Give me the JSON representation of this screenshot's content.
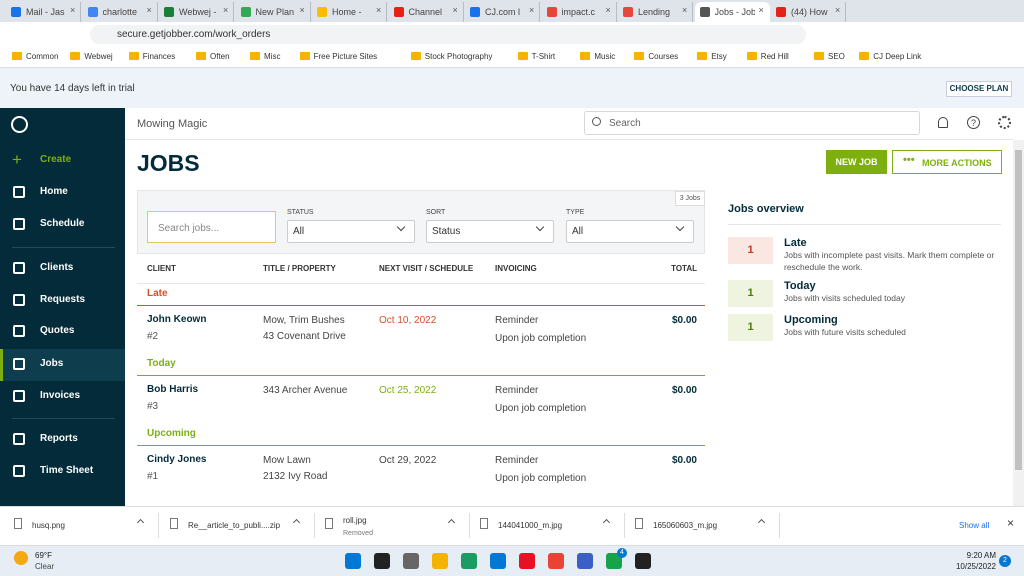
{
  "browser": {
    "tabs": [
      "Mail - Jas",
      "charlotte",
      "Webwej - L",
      "New Plan",
      "Home -",
      "Channel",
      "CJ.com l",
      "impact.c",
      "Lending",
      "Jobs - Job",
      "(44) How"
    ],
    "active_tab": 9,
    "url": "secure.getjobber.com/work_orders",
    "bookmarks": [
      "Common",
      "Webwej",
      "Finances",
      "Often",
      "Misc",
      "Free Picture Sites",
      "Stock Photography",
      "T-Shirt",
      "Music",
      "Courses",
      "Etsy",
      "Red Hill",
      "SEO",
      "CJ Deep Link"
    ]
  },
  "trial_banner": {
    "text": "You have 14 days left in trial",
    "button": "CHOOSE PLAN"
  },
  "sidebar": {
    "items": [
      "Create",
      "Home",
      "Schedule",
      "Clients",
      "Requests",
      "Quotes",
      "Jobs",
      "Invoices",
      "Reports",
      "Time Sheet"
    ],
    "active": 6
  },
  "header": {
    "company": "Mowing Magic",
    "search_placeholder": "Search"
  },
  "page": {
    "title": "JOBS",
    "new_button": "NEW JOB",
    "more_button": "MORE ACTIONS"
  },
  "filters": {
    "count": "3 Jobs",
    "search_placeholder": "Search jobs...",
    "status": {
      "label": "STATUS",
      "value": "All"
    },
    "sort": {
      "label": "SORT",
      "value": "Status"
    },
    "type": {
      "label": "TYPE",
      "value": "All"
    }
  },
  "table": {
    "columns": [
      "CLIENT",
      "TITLE / PROPERTY",
      "NEXT VISIT / SCHEDULE",
      "INVOICING",
      "TOTAL"
    ],
    "groups": [
      {
        "name": "Late",
        "color": "#d6502a",
        "rows": [
          {
            "client": "John Keown",
            "number": "#2",
            "title": "Mow, Trim Bushes",
            "property": "43 Covenant Drive",
            "next_visit": "Oct 10, 2022",
            "invoicing": "Reminder",
            "invoicing_detail": "Upon job completion",
            "total": "$0.00"
          }
        ]
      },
      {
        "name": "Today",
        "color": "#7db00e",
        "rows": [
          {
            "client": "Bob Harris",
            "number": "#3",
            "property": "343 Archer Avenue",
            "next_visit": "Oct 25, 2022",
            "invoicing": "Reminder",
            "invoicing_detail": "Upon job completion",
            "total": "$0.00"
          }
        ]
      },
      {
        "name": "Upcoming",
        "color": "#7db00e",
        "rows": [
          {
            "client": "Cindy Jones",
            "number": "#1",
            "title": "Mow Lawn",
            "property": "2132 Ivy Road",
            "next_visit": "Oct 29, 2022",
            "invoicing": "Reminder",
            "invoicing_detail": "Upon job completion",
            "total": "$0.00"
          }
        ]
      }
    ]
  },
  "overview": {
    "title": "Jobs overview",
    "cards": [
      {
        "count": 1,
        "label": "Late",
        "description": "Jobs with incomplete past visits. Mark them complete or reschedule the work.",
        "color": "#c0392b",
        "bg": "#fbe7e1"
      },
      {
        "count": 1,
        "label": "Today",
        "description": "Jobs with visits scheduled today",
        "color": "#4d7a0c",
        "bg": "#eef4e0"
      },
      {
        "count": 1,
        "label": "Upcoming",
        "description": "Jobs with future visits scheduled",
        "color": "#4d7a0c",
        "bg": "#eef4e0"
      }
    ]
  },
  "downloads": {
    "items": [
      {
        "name": "husq.png"
      },
      {
        "name": "Re__article_to_publi....zip"
      },
      {
        "name": "roll.jpg",
        "status": "Removed"
      },
      {
        "name": "144041000_m.jpg"
      },
      {
        "name": "165060603_m.jpg"
      }
    ],
    "show_all": "Show all"
  },
  "taskbar": {
    "temperature": "69°F",
    "weather": "Clear",
    "time": "9:20 AM",
    "date": "10/25/2022",
    "badge": "4",
    "notifications": "2"
  }
}
